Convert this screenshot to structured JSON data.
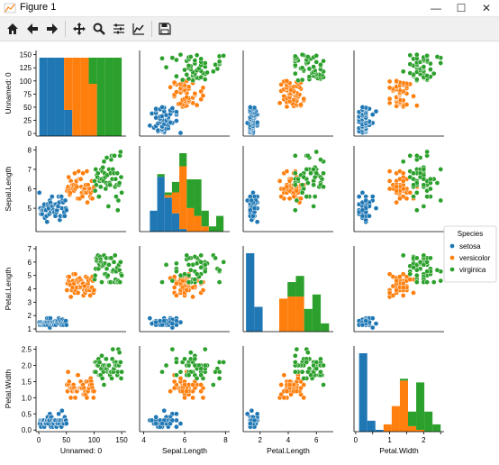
{
  "window": {
    "title": "Figure 1"
  },
  "toolbar": {
    "items": [
      "home-icon",
      "back-arrow-icon",
      "forward-arrow-icon",
      "pan-move-icon",
      "zoom-magnifier-icon",
      "configure-subplots-icon",
      "edit-axis-icon",
      "save-icon"
    ]
  },
  "colors": {
    "setosa": "#1f77b4",
    "versicolor": "#ff7f0e",
    "virginica": "#2ca02c"
  },
  "legend": {
    "title": "Species",
    "entries": [
      "setosa",
      "versicolor",
      "virginica"
    ]
  },
  "variables": [
    "Unnamed: 0",
    "Sepal.Length",
    "Petal.Length",
    "Petal.Width"
  ],
  "chart_data": {
    "type": "scatter",
    "title": "",
    "grid": false,
    "axes": [
      {
        "label": "Unnamed: 0",
        "ticks": [
          0,
          50,
          100,
          150
        ],
        "ylim": [
          -5,
          158
        ]
      },
      {
        "label": "Sepal.Length",
        "ticks": [
          4,
          6,
          8
        ],
        "ylim": [
          3.8,
          8.2
        ]
      },
      {
        "label": "Petal.Length",
        "ticks": [
          2,
          4,
          6
        ],
        "ylim": [
          0.8,
          7.2
        ]
      },
      {
        "label": "Petal.Width",
        "ticks": [
          0.0,
          0.5,
          1.0,
          1.5,
          2.0,
          2.5
        ],
        "ylim": [
          -0.05,
          2.6
        ]
      }
    ],
    "y_ticks": {
      "Unnamed: 0": [
        0,
        25,
        50,
        75,
        100,
        125,
        150
      ],
      "Sepal.Length": [
        5,
        6,
        7,
        8
      ],
      "Petal.Length": [
        1,
        2,
        3,
        4,
        5,
        6,
        7
      ],
      "Petal.Width": [
        0.0,
        0.5,
        1.0,
        1.5,
        2.0,
        2.5
      ]
    },
    "series": [
      {
        "name": "setosa",
        "sepal_length_range": [
          4.3,
          5.8
        ],
        "petal_length_range": [
          1.0,
          1.9
        ],
        "petal_width_range": [
          0.1,
          0.6
        ],
        "index_range": [
          1,
          50
        ]
      },
      {
        "name": "versicolor",
        "sepal_length_range": [
          4.9,
          7.0
        ],
        "petal_length_range": [
          3.0,
          5.1
        ],
        "petal_width_range": [
          1.0,
          1.8
        ],
        "index_range": [
          51,
          100
        ]
      },
      {
        "name": "virginica",
        "sepal_length_range": [
          4.9,
          7.9
        ],
        "petal_length_range": [
          4.5,
          6.9
        ],
        "petal_width_range": [
          1.4,
          2.5
        ],
        "index_range": [
          101,
          150
        ]
      }
    ]
  }
}
